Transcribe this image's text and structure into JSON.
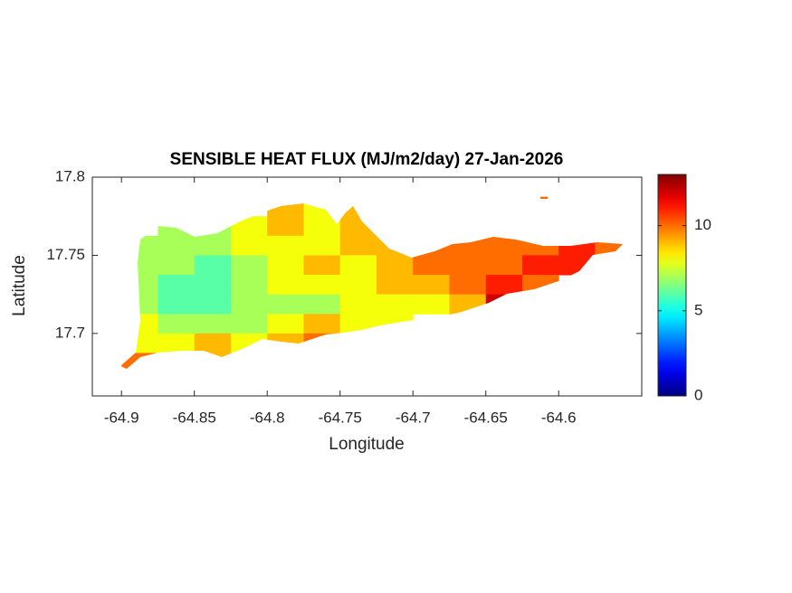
{
  "chart_data": {
    "type": "heatmap",
    "title": "SENSIBLE HEAT FLUX (MJ/m2/day) 27-Jan-2026",
    "xlabel": "Longitude",
    "ylabel": "Latitude",
    "xlim": [
      -64.92,
      -64.543
    ],
    "ylim": [
      17.66,
      17.8
    ],
    "xticks": [
      -64.9,
      -64.85,
      -64.8,
      -64.75,
      -64.7,
      -64.65,
      -64.6
    ],
    "yticks": [
      17.7,
      17.75,
      17.8
    ],
    "colormap": "jet",
    "clim": [
      0,
      13
    ],
    "cticks": [
      0,
      5,
      10
    ],
    "x": [
      -64.8875,
      -64.8625,
      -64.8375,
      -64.8125,
      -64.7875,
      -64.7625,
      -64.7375,
      -64.7125,
      -64.6875,
      -64.6625,
      -64.6375,
      -64.6125,
      -64.5875,
      -64.5625
    ],
    "y": [
      17.78125,
      17.76875,
      17.75625,
      17.74375,
      17.73125,
      17.71875,
      17.70625,
      17.69375,
      17.68125
    ],
    "z": [
      [
        null,
        null,
        null,
        null,
        9,
        8,
        9,
        null,
        null,
        null,
        null,
        10,
        null,
        null
      ],
      [
        null,
        7,
        7,
        8,
        9,
        8,
        9,
        9,
        null,
        null,
        null,
        null,
        null,
        null
      ],
      [
        7,
        7,
        7,
        8,
        8,
        8,
        9,
        9,
        10,
        10,
        10,
        10,
        11,
        10
      ],
      [
        7,
        7,
        6,
        7,
        8,
        9,
        8,
        9,
        10,
        10,
        10,
        11,
        11,
        null
      ],
      [
        7,
        6,
        6,
        7,
        8,
        8,
        8,
        9,
        9,
        10,
        11,
        10,
        null,
        null
      ],
      [
        7,
        6,
        6,
        7,
        7,
        7,
        8,
        8,
        8,
        9,
        12,
        null,
        null,
        null
      ],
      [
        8,
        7,
        7,
        7,
        8,
        9,
        8,
        8,
        null,
        null,
        null,
        null,
        null,
        null
      ],
      [
        8,
        8,
        9,
        8,
        9,
        10,
        null,
        null,
        null,
        null,
        null,
        null,
        null,
        null
      ],
      [
        10,
        8,
        9,
        null,
        null,
        null,
        null,
        null,
        null,
        null,
        null,
        null,
        null,
        null
      ]
    ]
  }
}
